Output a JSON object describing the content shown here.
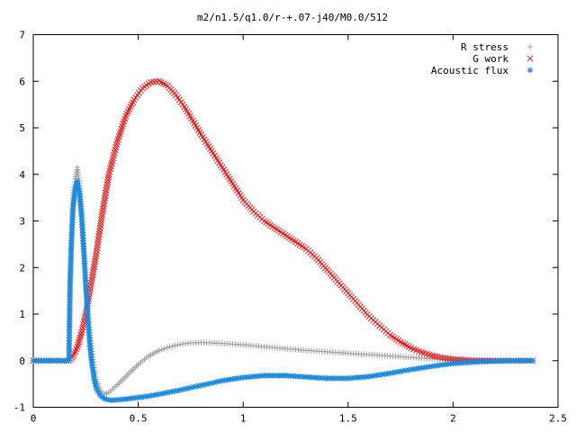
{
  "chart_data": {
    "type": "scatter",
    "title": "m2/n1.5/q1.0/r-+.07-j40/M0.0/512",
    "xlabel": "",
    "ylabel": "",
    "xlim": [
      0,
      2.5
    ],
    "ylim": [
      -1,
      7
    ],
    "x_ticks": [
      "0",
      "0.5",
      "1",
      "1.5",
      "2",
      "2.5"
    ],
    "y_ticks": [
      "-1",
      "0",
      "1",
      "2",
      "3",
      "4",
      "5",
      "6",
      "7"
    ],
    "grid": false,
    "legend_position": "top-right",
    "series": [
      {
        "name": "R stress",
        "marker": "plus",
        "color": "#a0a0a0",
        "points": [
          [
            0.0,
            0.0
          ],
          [
            0.1,
            0.0
          ],
          [
            0.17,
            0.0
          ],
          [
            0.175,
            1.5
          ],
          [
            0.18,
            2.4
          ],
          [
            0.185,
            3.1
          ],
          [
            0.19,
            3.6
          ],
          [
            0.2,
            3.9
          ],
          [
            0.21,
            4.15
          ],
          [
            0.22,
            3.8
          ],
          [
            0.23,
            3.3
          ],
          [
            0.24,
            2.5
          ],
          [
            0.25,
            1.7
          ],
          [
            0.26,
            1.1
          ],
          [
            0.27,
            0.6
          ],
          [
            0.28,
            0.2
          ],
          [
            0.29,
            -0.15
          ],
          [
            0.3,
            -0.4
          ],
          [
            0.32,
            -0.65
          ],
          [
            0.34,
            -0.72
          ],
          [
            0.36,
            -0.68
          ],
          [
            0.38,
            -0.6
          ],
          [
            0.4,
            -0.52
          ],
          [
            0.45,
            -0.3
          ],
          [
            0.5,
            -0.08
          ],
          [
            0.55,
            0.1
          ],
          [
            0.6,
            0.22
          ],
          [
            0.65,
            0.3
          ],
          [
            0.7,
            0.35
          ],
          [
            0.75,
            0.38
          ],
          [
            0.8,
            0.39
          ],
          [
            0.85,
            0.38
          ],
          [
            0.9,
            0.37
          ],
          [
            1.0,
            0.34
          ],
          [
            1.1,
            0.3
          ],
          [
            1.2,
            0.26
          ],
          [
            1.3,
            0.22
          ],
          [
            1.4,
            0.19
          ],
          [
            1.5,
            0.16
          ],
          [
            1.6,
            0.13
          ],
          [
            1.7,
            0.1
          ],
          [
            1.8,
            0.07
          ],
          [
            1.9,
            0.04
          ],
          [
            2.0,
            0.02
          ],
          [
            2.1,
            0.01
          ],
          [
            2.2,
            0.0
          ],
          [
            2.3,
            0.0
          ],
          [
            2.38,
            0.0
          ]
        ]
      },
      {
        "name": "G work",
        "marker": "cross",
        "color": "#e02020",
        "points": [
          [
            0.0,
            0.0
          ],
          [
            0.1,
            0.0
          ],
          [
            0.17,
            0.0
          ],
          [
            0.19,
            0.1
          ],
          [
            0.21,
            0.3
          ],
          [
            0.23,
            0.6
          ],
          [
            0.25,
            1.0
          ],
          [
            0.27,
            1.5
          ],
          [
            0.3,
            2.3
          ],
          [
            0.33,
            3.2
          ],
          [
            0.36,
            4.0
          ],
          [
            0.4,
            4.7
          ],
          [
            0.44,
            5.25
          ],
          [
            0.48,
            5.6
          ],
          [
            0.52,
            5.85
          ],
          [
            0.56,
            5.98
          ],
          [
            0.6,
            6.0
          ],
          [
            0.64,
            5.9
          ],
          [
            0.68,
            5.7
          ],
          [
            0.72,
            5.45
          ],
          [
            0.76,
            5.15
          ],
          [
            0.8,
            4.85
          ],
          [
            0.85,
            4.5
          ],
          [
            0.9,
            4.15
          ],
          [
            0.95,
            3.8
          ],
          [
            1.0,
            3.45
          ],
          [
            1.05,
            3.2
          ],
          [
            1.1,
            3.0
          ],
          [
            1.15,
            2.85
          ],
          [
            1.2,
            2.7
          ],
          [
            1.25,
            2.55
          ],
          [
            1.3,
            2.4
          ],
          [
            1.35,
            2.2
          ],
          [
            1.4,
            1.95
          ],
          [
            1.45,
            1.7
          ],
          [
            1.5,
            1.45
          ],
          [
            1.55,
            1.2
          ],
          [
            1.6,
            0.95
          ],
          [
            1.65,
            0.75
          ],
          [
            1.7,
            0.55
          ],
          [
            1.75,
            0.4
          ],
          [
            1.8,
            0.27
          ],
          [
            1.85,
            0.18
          ],
          [
            1.9,
            0.11
          ],
          [
            1.95,
            0.06
          ],
          [
            2.0,
            0.03
          ],
          [
            2.05,
            0.015
          ],
          [
            2.1,
            0.0
          ],
          [
            2.2,
            0.0
          ],
          [
            2.3,
            0.0
          ],
          [
            2.38,
            0.0
          ]
        ]
      },
      {
        "name": "Acoustic flux",
        "marker": "star",
        "color": "#1a8ae0",
        "points": [
          [
            0.0,
            0.0
          ],
          [
            0.1,
            0.0
          ],
          [
            0.17,
            0.0
          ],
          [
            0.175,
            1.6
          ],
          [
            0.18,
            2.3
          ],
          [
            0.185,
            2.9
          ],
          [
            0.19,
            3.3
          ],
          [
            0.2,
            3.7
          ],
          [
            0.21,
            3.85
          ],
          [
            0.22,
            3.6
          ],
          [
            0.23,
            3.1
          ],
          [
            0.24,
            2.4
          ],
          [
            0.25,
            1.6
          ],
          [
            0.26,
            0.9
          ],
          [
            0.27,
            0.3
          ],
          [
            0.28,
            -0.1
          ],
          [
            0.29,
            -0.4
          ],
          [
            0.3,
            -0.6
          ],
          [
            0.32,
            -0.75
          ],
          [
            0.34,
            -0.82
          ],
          [
            0.37,
            -0.85
          ],
          [
            0.4,
            -0.84
          ],
          [
            0.45,
            -0.82
          ],
          [
            0.5,
            -0.79
          ],
          [
            0.55,
            -0.76
          ],
          [
            0.6,
            -0.72
          ],
          [
            0.7,
            -0.63
          ],
          [
            0.8,
            -0.53
          ],
          [
            0.9,
            -0.43
          ],
          [
            1.0,
            -0.36
          ],
          [
            1.1,
            -0.32
          ],
          [
            1.2,
            -0.32
          ],
          [
            1.3,
            -0.35
          ],
          [
            1.4,
            -0.38
          ],
          [
            1.5,
            -0.38
          ],
          [
            1.6,
            -0.34
          ],
          [
            1.7,
            -0.27
          ],
          [
            1.8,
            -0.19
          ],
          [
            1.9,
            -0.12
          ],
          [
            2.0,
            -0.06
          ],
          [
            2.1,
            -0.03
          ],
          [
            2.2,
            -0.01
          ],
          [
            2.3,
            0.0
          ],
          [
            2.38,
            0.0
          ]
        ]
      }
    ]
  }
}
